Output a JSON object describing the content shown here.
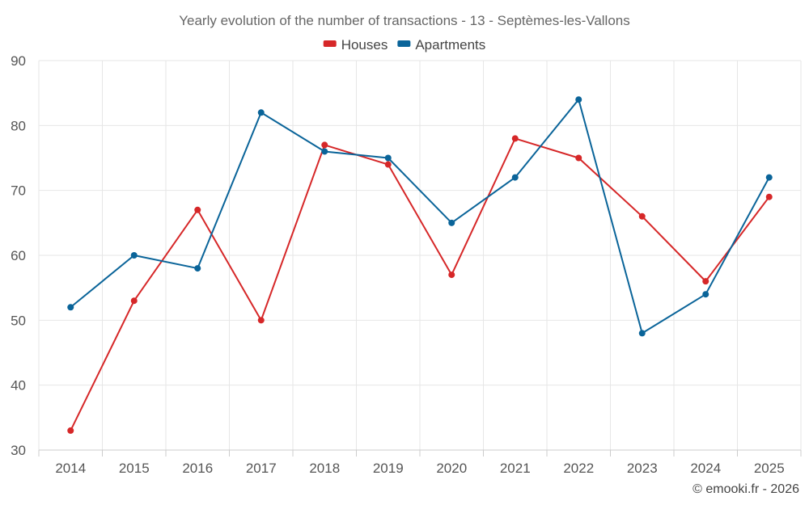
{
  "chart_data": {
    "type": "line",
    "title": "Yearly evolution of the number of transactions - 13 - Septèmes-les-Vallons",
    "categories": [
      "2014",
      "2015",
      "2016",
      "2017",
      "2018",
      "2019",
      "2020",
      "2021",
      "2022",
      "2023",
      "2024",
      "2025"
    ],
    "ylim": [
      30,
      90
    ],
    "yticks": [
      30,
      40,
      50,
      60,
      70,
      80,
      90
    ],
    "grid": true,
    "legend_position": "top-center",
    "series": [
      {
        "name": "Houses",
        "color": "#d62728",
        "values": [
          33,
          53,
          67,
          50,
          77,
          74,
          57,
          78,
          75,
          66,
          56,
          69
        ]
      },
      {
        "name": "Apartments",
        "color": "#0a6499",
        "values": [
          52,
          60,
          58,
          82,
          76,
          75,
          65,
          72,
          84,
          48,
          54,
          72
        ]
      }
    ]
  },
  "credit": "© emooki.fr - 2026"
}
